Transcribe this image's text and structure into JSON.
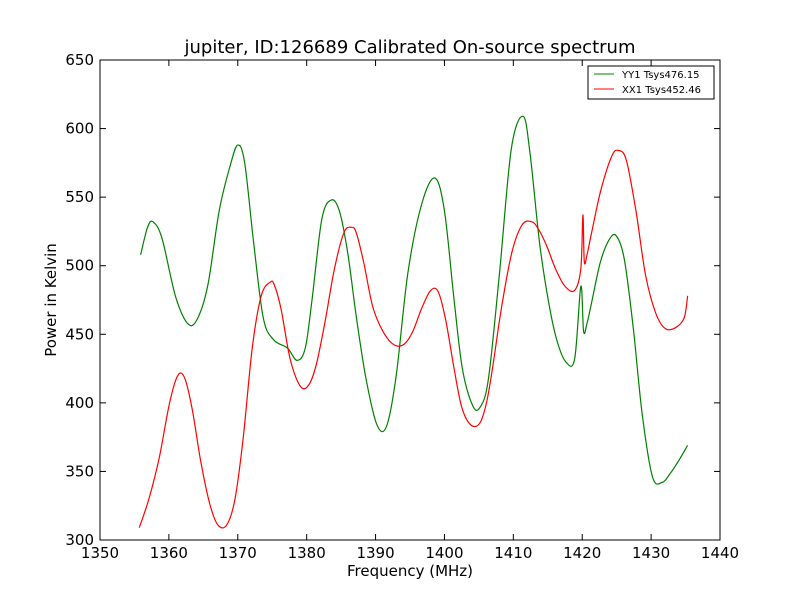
{
  "chart_data": {
    "type": "line",
    "title": "jupiter, ID:126689 Calibrated On-source spectrum",
    "xlabel": "Frequency (MHz)",
    "ylabel": "Power in Kelvin",
    "xlim": [
      1350,
      1440
    ],
    "ylim": [
      300,
      650
    ],
    "xticks": [
      "1350",
      "1360",
      "1370",
      "1380",
      "1390",
      "1400",
      "1410",
      "1420",
      "1430",
      "1440"
    ],
    "yticks": [
      "300",
      "350",
      "400",
      "450",
      "500",
      "550",
      "600",
      "650"
    ],
    "legend_position": "top-right",
    "grid": false,
    "series": [
      {
        "name": "YY1 Tsys476.15",
        "color": "#008000",
        "x": [
          1355.9,
          1356.9,
          1357.7,
          1359.0,
          1361.0,
          1362.9,
          1364.3,
          1365.7,
          1367.3,
          1368.9,
          1370.0,
          1371.0,
          1372.3,
          1373.7,
          1375.2,
          1377.2,
          1378.6,
          1379.8,
          1380.8,
          1382.2,
          1383.6,
          1384.8,
          1386.0,
          1387.2,
          1388.6,
          1390.2,
          1391.6,
          1393.0,
          1394.7,
          1396.7,
          1398.6,
          1400.0,
          1401.4,
          1402.6,
          1404.1,
          1405.2,
          1406.4,
          1408.0,
          1409.7,
          1411.4,
          1412.4,
          1413.8,
          1415.1,
          1416.3,
          1417.6,
          1418.9,
          1419.8,
          1420.2,
          1420.7,
          1421.4,
          1422.6,
          1423.8,
          1424.9,
          1426.1,
          1427.4,
          1428.7,
          1430.2,
          1431.6,
          1432.7,
          1433.9,
          1435.3
        ],
        "values": [
          508,
          528,
          532,
          520,
          477,
          457,
          463,
          487,
          540,
          573,
          588,
          575,
          517,
          462,
          446,
          440,
          431,
          440,
          476,
          534,
          548,
          539,
          508,
          463,
          418,
          384,
          383,
          420,
          495,
          545,
          564,
          540,
          475,
          425,
          398,
          397,
          418,
          495,
          585,
          609,
          583,
          517,
          474,
          446,
          430,
          432,
          485,
          452,
          458,
          474,
          502,
          518,
          522,
          505,
          455,
          392,
          346,
          342,
          348,
          357,
          369
        ]
      },
      {
        "name": "XX1 Tsys452.46",
        "color": "#ff0000",
        "x": [
          1355.7,
          1357.1,
          1358.6,
          1360.1,
          1361.3,
          1362.3,
          1363.4,
          1364.6,
          1365.9,
          1367.1,
          1368.4,
          1369.6,
          1370.8,
          1372.1,
          1373.4,
          1374.7,
          1375.3,
          1376.3,
          1377.6,
          1379.1,
          1380.3,
          1381.4,
          1382.7,
          1384.0,
          1385.4,
          1386.5,
          1387.2,
          1388.3,
          1389.6,
          1391.2,
          1392.8,
          1394.2,
          1395.4,
          1396.7,
          1398.0,
          1399.1,
          1400.2,
          1401.4,
          1402.5,
          1403.8,
          1405.1,
          1406.1,
          1407.0,
          1408.3,
          1409.8,
          1411.3,
          1412.7,
          1413.6,
          1414.8,
          1416.1,
          1417.5,
          1418.9,
          1419.8,
          1420.1,
          1420.3,
          1420.7,
          1421.4,
          1422.7,
          1424.3,
          1425.3,
          1426.4,
          1427.8,
          1429.2,
          1430.7,
          1432.1,
          1433.6,
          1434.8,
          1435.3
        ],
        "values": [
          309,
          330,
          360,
          400,
          420,
          418,
          395,
          358,
          327,
          311,
          311,
          330,
          375,
          440,
          478,
          488,
          486,
          468,
          432,
          412,
          413,
          428,
          460,
          497,
          524,
          528,
          524,
          502,
          470,
          451,
          442,
          443,
          452,
          469,
          482,
          481,
          460,
          425,
          397,
          384,
          385,
          400,
          426,
          470,
          510,
          530,
          532,
          527,
          515,
          498,
          485,
          482,
          498,
          537,
          503,
          508,
          525,
          555,
          580,
          584,
          577,
          540,
          493,
          465,
          454,
          455,
          462,
          478
        ]
      }
    ]
  }
}
